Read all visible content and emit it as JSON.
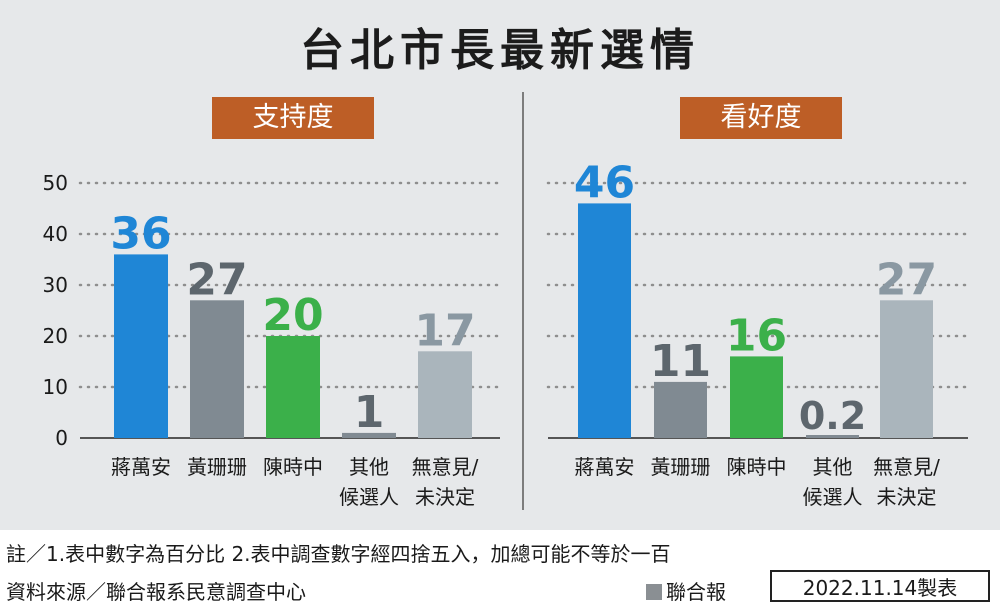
{
  "title": "台北市長最新選情",
  "panels": [
    {
      "tag": "支持度"
    },
    {
      "tag": "看好度"
    }
  ],
  "colors": {
    "blue": "#1f86d6",
    "gray": "#808a92",
    "green": "#3bb04a",
    "lightgray": "#aab5bc",
    "grid": "#8e8e8e",
    "orange": "#bd5e26"
  },
  "chart_data": [
    {
      "type": "bar",
      "title": "支持度",
      "categories": [
        [
          "蔣萬安"
        ],
        [
          "黃珊珊"
        ],
        [
          "陳時中"
        ],
        [
          "其他",
          "候選人"
        ],
        [
          "無意見/",
          "未決定"
        ]
      ],
      "values": [
        36,
        27,
        20,
        1,
        17
      ],
      "labels": [
        "36",
        "27",
        "20",
        "1",
        "17"
      ],
      "colors": [
        "#1f86d6",
        "#808a92",
        "#3bb04a",
        "#808a92",
        "#aab5bc"
      ],
      "label_colors": [
        "#1f86d6",
        "#5d666d",
        "#3bb04a",
        "#5d666d",
        "#8a98a2"
      ],
      "ylim": [
        0,
        50
      ],
      "yticks": [
        0,
        10,
        20,
        30,
        40,
        50
      ],
      "grid": true
    },
    {
      "type": "bar",
      "title": "看好度",
      "categories": [
        [
          "蔣萬安"
        ],
        [
          "黃珊珊"
        ],
        [
          "陳時中"
        ],
        [
          "其他",
          "候選人"
        ],
        [
          "無意見/",
          "未決定"
        ]
      ],
      "values": [
        46,
        11,
        16,
        0.2,
        27
      ],
      "labels": [
        "46",
        "11",
        "16",
        "0.2",
        "27"
      ],
      "colors": [
        "#1f86d6",
        "#808a92",
        "#3bb04a",
        "#808a92",
        "#aab5bc"
      ],
      "label_colors": [
        "#1f86d6",
        "#5d666d",
        "#3bb04a",
        "#5d666d",
        "#8a98a2"
      ],
      "ylim": [
        0,
        50
      ],
      "yticks": [
        0,
        10,
        20,
        30,
        40,
        50
      ],
      "grid": true
    }
  ],
  "footer": {
    "note": "註／1.表中數字為百分比  2.表中調查數字經四捨五入，加總可能不等於一百",
    "source": "資料來源／聯合報系民意調查中心",
    "publisher": "聯合報",
    "date": "2022.11.14製表"
  }
}
